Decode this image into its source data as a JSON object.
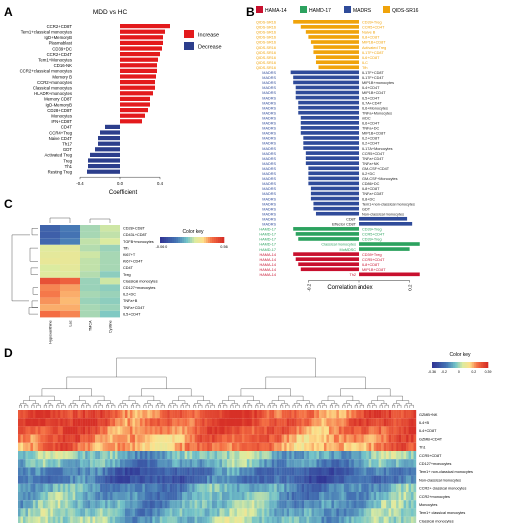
{
  "panel_labels": [
    "A",
    "B",
    "C",
    "D"
  ],
  "chart_data": [
    {
      "panel": "A",
      "type": "bar",
      "orientation": "horizontal",
      "title": "MDD vs HC",
      "xlabel": "Coefficient",
      "xlim": [
        -0.45,
        0.55
      ],
      "xticks": [
        "-0.4",
        "0.0",
        "0.4"
      ],
      "xtick_values": [
        -0.4,
        0.0,
        0.4
      ],
      "legend": [
        {
          "label": "Increase",
          "color": "#e31a1c"
        },
        {
          "label": "Decrease",
          "color": "#2c3e8c"
        }
      ],
      "categories": [
        "CCR2+CD8T",
        "Tem1+classical monocytes",
        "IgD+MemoryB",
        "Plasmablast",
        "CD39+DC",
        "CCR2+CD4T",
        "Tem1+Monocytes",
        "CD16-NK",
        "CCR2+classical monocytes",
        "Memory B",
        "CCR2+monocytes",
        "Classical monocytes",
        "HLADR+monocytes",
        "Memory CD8T",
        "IgD-MemoryB",
        "CD28+CD8T",
        "Monocytes",
        "IFN+CD8T",
        "CD4T",
        "CCR4+Treg",
        "Naive CD4T",
        "Th17",
        "GDT",
        "Activated Treg",
        "Treg",
        "Th1",
        "Resting Treg"
      ],
      "values": [
        0.5,
        0.45,
        0.43,
        0.43,
        0.42,
        0.4,
        0.38,
        0.37,
        0.37,
        0.36,
        0.35,
        0.35,
        0.33,
        0.3,
        0.3,
        0.28,
        0.25,
        0.22,
        -0.15,
        -0.2,
        -0.22,
        -0.22,
        -0.25,
        -0.3,
        -0.32,
        -0.32,
        -0.33
      ]
    },
    {
      "panel": "B",
      "type": "bar",
      "orientation": "horizontal",
      "xlabel": "Correlation index",
      "xlim": [
        -0.32,
        0.32
      ],
      "xticks": [
        "-0.2",
        "0",
        "0.2"
      ],
      "xtick_values": [
        -0.2,
        0,
        0.2
      ],
      "legend": [
        {
          "label": "HAMA-14",
          "color": "#c8102e"
        },
        {
          "label": "HAMD-17",
          "color": "#2ca25f"
        },
        {
          "label": "MADRS",
          "color": "#2f4b9a"
        },
        {
          "label": "QIDS-SR16",
          "color": "#f0a30a"
        }
      ],
      "rows": [
        {
          "scale": "QIDS-SR16",
          "label": "CD39+Treg",
          "value": -0.26
        },
        {
          "scale": "QIDS-SR16",
          "label": "CCR5+CD4T",
          "value": -0.23
        },
        {
          "scale": "QIDS-SR16",
          "label": "Naive B",
          "value": -0.21
        },
        {
          "scale": "QIDS-SR16",
          "label": "IL8+CD8T",
          "value": -0.2
        },
        {
          "scale": "QIDS-SR16",
          "label": "MIP1B+CD8T",
          "value": -0.19
        },
        {
          "scale": "QIDS-SR16",
          "label": "Activated Treg",
          "value": -0.18
        },
        {
          "scale": "QIDS-SR16",
          "label": "IL17F+CD8T",
          "value": -0.18
        },
        {
          "scale": "QIDS-SR16",
          "label": "IL6+CD8T",
          "value": -0.17
        },
        {
          "scale": "QIDS-SR16",
          "label": "ILC",
          "value": -0.17
        },
        {
          "scale": "QIDS-SR16",
          "label": "Tfh",
          "value": -0.16
        },
        {
          "scale": "MADRS",
          "label": "IL17F+CD8T",
          "value": -0.27
        },
        {
          "scale": "MADRS",
          "label": "IL17F+CD4T",
          "value": -0.26
        },
        {
          "scale": "MADRS",
          "label": "MIP1B+monocytes",
          "value": -0.26
        },
        {
          "scale": "MADRS",
          "label": "IL4+CD4T",
          "value": -0.25
        },
        {
          "scale": "MADRS",
          "label": "MIP1B+CD4T",
          "value": -0.25
        },
        {
          "scale": "MADRS",
          "label": "IL5+CD4T",
          "value": -0.25
        },
        {
          "scale": "MADRS",
          "label": "IL7A+CD4T",
          "value": -0.24
        },
        {
          "scale": "MADRS",
          "label": "IL6+Monocytes",
          "value": -0.24
        },
        {
          "scale": "MADRS",
          "label": "TNFa+Monocytes",
          "value": -0.24
        },
        {
          "scale": "MADRS",
          "label": "mDC",
          "value": -0.23
        },
        {
          "scale": "MADRS",
          "label": "IL6+CD4T",
          "value": -0.23
        },
        {
          "scale": "MADRS",
          "label": "TNFa+DC",
          "value": -0.23
        },
        {
          "scale": "MADRS",
          "label": "MIP1B+CD8T",
          "value": -0.23
        },
        {
          "scale": "MADRS",
          "label": "IL2+CD8T",
          "value": -0.22
        },
        {
          "scale": "MADRS",
          "label": "IL2+CD4T",
          "value": -0.22
        },
        {
          "scale": "MADRS",
          "label": "IL17A+Monocytes",
          "value": -0.22
        },
        {
          "scale": "MADRS",
          "label": "CCR5+CD4T",
          "value": -0.21
        },
        {
          "scale": "MADRS",
          "label": "TNFa+CD4T",
          "value": -0.21
        },
        {
          "scale": "MADRS",
          "label": "TNFa+NK",
          "value": -0.21
        },
        {
          "scale": "MADRS",
          "label": "GM-CSF+CD4T",
          "value": -0.2
        },
        {
          "scale": "MADRS",
          "label": "IL2+DC",
          "value": -0.2
        },
        {
          "scale": "MADRS",
          "label": "GM-CSF+Monocytes",
          "value": -0.2
        },
        {
          "scale": "MADRS",
          "label": "CD86+DC",
          "value": -0.2
        },
        {
          "scale": "MADRS",
          "label": "IL8+CD8T",
          "value": -0.19
        },
        {
          "scale": "MADRS",
          "label": "TNFa+CD8T",
          "value": -0.19
        },
        {
          "scale": "MADRS",
          "label": "IL8+DC",
          "value": -0.19
        },
        {
          "scale": "MADRS",
          "label": "Tem1+non-classical monocytes",
          "value": -0.18
        },
        {
          "scale": "MADRS",
          "label": "GDT",
          "value": -0.18
        },
        {
          "scale": "MADRS",
          "label": "Non-classical monocytes",
          "value": -0.17
        },
        {
          "scale": "MADRS",
          "label": "CD8T",
          "value": 0.19
        },
        {
          "scale": "MADRS",
          "label": "Effector CD8T",
          "value": 0.21
        },
        {
          "scale": "HAMD-17",
          "label": "CD39+Treg",
          "value": -0.26
        },
        {
          "scale": "HAMD-17",
          "label": "CCR5+CD4T",
          "value": -0.25
        },
        {
          "scale": "HAMD-17",
          "label": "CD39+Treg",
          "value": -0.24
        },
        {
          "scale": "HAMD-17",
          "label": "Classical monocytes",
          "value": 0.24
        },
        {
          "scale": "HAMD-17",
          "label": "MoMDSC",
          "value": 0.2
        },
        {
          "scale": "HAMA-14",
          "label": "CD39+Treg",
          "value": -0.26
        },
        {
          "scale": "HAMA-14",
          "label": "CCR5+CD4T",
          "value": -0.25
        },
        {
          "scale": "HAMA-14",
          "label": "IL8+CD8T",
          "value": -0.24
        },
        {
          "scale": "HAMA-14",
          "label": "MIP1B+CD8T",
          "value": -0.23
        },
        {
          "scale": "HAMA-14",
          "label": "Th2",
          "value": 0.24
        }
      ]
    },
    {
      "panel": "C",
      "type": "heatmap",
      "legend_title": "Color key",
      "scale_ticks": [
        "-0.06",
        "0",
        "0.56"
      ],
      "scale_values": [
        -0.06,
        0,
        0.56
      ],
      "columns": [
        "Hypoxanthine",
        "Lac",
        "TMCA",
        "Cystine"
      ],
      "rows": [
        "CD28+CD8T",
        "CD43L+CD8T",
        "TGFB+monocytes",
        "Tfh",
        "Ki67+T",
        "Ki67+CD4T",
        "CD4T",
        "Treg",
        "Classical monocytes",
        "CD127+monocytes",
        "IL2+DC",
        "TNFa+B",
        "TNFa+CD4T",
        "IL5+CD4T"
      ],
      "values": [
        [
          0.05,
          0.1,
          0.24,
          0.27
        ],
        [
          0.04,
          0.09,
          0.24,
          0.26
        ],
        [
          0.06,
          0.11,
          0.26,
          0.28
        ],
        [
          0.29,
          0.3,
          0.25,
          0.23
        ],
        [
          0.3,
          0.31,
          0.27,
          0.24
        ],
        [
          0.31,
          0.31,
          0.26,
          0.24
        ],
        [
          0.28,
          0.3,
          0.26,
          0.24
        ],
        [
          0.29,
          0.29,
          0.25,
          0.22
        ],
        [
          0.5,
          0.47,
          0.23,
          0.27
        ],
        [
          0.43,
          0.41,
          0.23,
          0.22
        ],
        [
          0.44,
          0.4,
          0.24,
          0.23
        ],
        [
          0.42,
          0.39,
          0.23,
          0.22
        ],
        [
          0.4,
          0.4,
          0.24,
          0.23
        ],
        [
          0.45,
          0.43,
          0.24,
          0.21
        ]
      ]
    },
    {
      "panel": "D",
      "type": "heatmap",
      "legend_title": "Color key",
      "scale_ticks": [
        "-0.36",
        "-0.2",
        "0",
        "0.2",
        "0.39"
      ],
      "scale_values": [
        -0.36,
        -0.2,
        0,
        0.2,
        0.39
      ],
      "rows": [
        "GZMB+NK",
        "IL4+B",
        "IL4+CD8T",
        "GZMB+CD4T",
        "Th1",
        "CCR5+CD8T",
        "CD127+monocytes",
        "Tem1+ non-classical monocytes",
        "Non-classical monocytes",
        "CCR2+ classical monocytes",
        "CCR2+monocytes",
        "Monocytes",
        "Tem1+ classical monocytes",
        "Classical monocytes"
      ],
      "row_means": [
        0.3,
        0.31,
        0.28,
        0.24,
        0.22,
        -0.05,
        -0.1,
        -0.2,
        -0.22,
        -0.12,
        -0.1,
        -0.08,
        -0.06,
        -0.04
      ],
      "column_count": 160,
      "column_labels_legible": false
    }
  ]
}
